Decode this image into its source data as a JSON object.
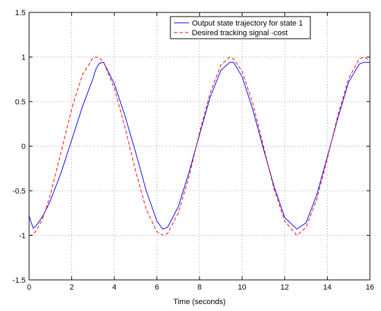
{
  "chart_data": {
    "type": "line",
    "title": "",
    "xlabel": "Time (seconds)",
    "ylabel": "",
    "xlim": [
      0,
      16
    ],
    "ylim": [
      -1.5,
      1.5
    ],
    "grid": true,
    "legend_position": "top-right",
    "x_ticks": [
      "0",
      "2",
      "4",
      "6",
      "8",
      "10",
      "12",
      "14",
      "16"
    ],
    "y_ticks": [
      "-1.5",
      "-1",
      "-0.5",
      "0",
      "0.5",
      "1",
      "1.5"
    ],
    "x": [
      0,
      0.1,
      0.2,
      0.3,
      0.4,
      0.6,
      0.8,
      1.0,
      1.5,
      2.0,
      2.5,
      3.0,
      3.14,
      3.3,
      3.5,
      4.0,
      4.5,
      5.0,
      5.5,
      6.0,
      6.28,
      6.5,
      7.0,
      7.5,
      8.0,
      8.5,
      9.0,
      9.42,
      9.6,
      10.0,
      10.5,
      11.0,
      11.5,
      12.0,
      12.57,
      13.0,
      13.5,
      14.0,
      14.5,
      15.0,
      15.5,
      15.71,
      16.0
    ],
    "series": [
      {
        "name": "Output state trajectory for state 1",
        "color": "#0000ff",
        "style": "solid",
        "values": [
          -0.78,
          -0.86,
          -0.92,
          -0.9,
          -0.87,
          -0.8,
          -0.71,
          -0.61,
          -0.3,
          0.07,
          0.44,
          0.76,
          0.87,
          0.93,
          0.94,
          0.7,
          0.34,
          -0.07,
          -0.5,
          -0.84,
          -0.93,
          -0.91,
          -0.68,
          -0.3,
          0.13,
          0.55,
          0.85,
          0.94,
          0.94,
          0.78,
          0.41,
          -0.03,
          -0.45,
          -0.8,
          -0.93,
          -0.86,
          -0.55,
          -0.12,
          0.32,
          0.72,
          0.92,
          0.94,
          0.94
        ]
      },
      {
        "name": "Desired tracking signal -cost",
        "color": "#ff0000",
        "style": "dashed",
        "values": [
          -1.0,
          -1.0,
          -0.98,
          -0.96,
          -0.92,
          -0.83,
          -0.7,
          -0.54,
          -0.07,
          0.42,
          0.8,
          0.99,
          1.0,
          0.99,
          0.94,
          0.65,
          0.21,
          -0.28,
          -0.71,
          -0.96,
          -1.0,
          -0.98,
          -0.75,
          -0.35,
          0.15,
          0.6,
          0.91,
          1.0,
          0.98,
          0.84,
          0.48,
          0.0,
          -0.48,
          -0.84,
          -1.0,
          -0.91,
          -0.6,
          -0.14,
          0.35,
          0.76,
          0.98,
          1.0,
          0.96
        ]
      }
    ]
  }
}
